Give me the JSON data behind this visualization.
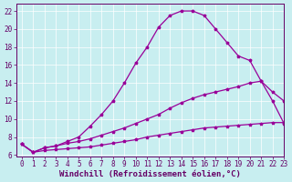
{
  "xlabel": "Windchill (Refroidissement éolien,°C)",
  "bg_color": "#c8eef0",
  "grid_color": "#ffffff",
  "line_color": "#990099",
  "xlim": [
    -0.5,
    23
  ],
  "ylim": [
    5.8,
    22.8
  ],
  "xticks": [
    0,
    1,
    2,
    3,
    4,
    5,
    6,
    7,
    8,
    9,
    10,
    11,
    12,
    13,
    14,
    15,
    16,
    17,
    18,
    19,
    20,
    21,
    22,
    23
  ],
  "yticks": [
    6,
    8,
    10,
    12,
    14,
    16,
    18,
    20,
    22
  ],
  "curve_main_x": [
    0,
    1,
    2,
    3,
    4,
    5,
    6,
    7,
    8,
    9,
    10,
    11,
    12,
    13,
    14,
    15,
    16,
    17,
    18,
    19,
    20,
    21,
    22,
    23
  ],
  "curve_main_y": [
    7.2,
    6.3,
    6.8,
    7.0,
    7.5,
    8.0,
    9.2,
    10.5,
    12.0,
    14.0,
    16.2,
    18.0,
    20.2,
    21.5,
    22.0,
    22.0,
    21.5,
    20.0,
    18.5,
    17.0,
    16.5,
    14.2,
    12.0,
    9.5
  ],
  "curve_mid_x": [
    0,
    1,
    2,
    3,
    4,
    5,
    6,
    7,
    8,
    9,
    10,
    11,
    12,
    13,
    14,
    15,
    16,
    17,
    18,
    19,
    20,
    21,
    22,
    23
  ],
  "curve_mid_y": [
    7.2,
    6.3,
    6.8,
    7.0,
    7.3,
    7.5,
    7.8,
    8.2,
    8.6,
    9.0,
    9.5,
    10.0,
    10.5,
    11.2,
    11.8,
    12.3,
    12.7,
    13.0,
    13.3,
    13.6,
    14.0,
    14.2,
    13.0,
    12.0
  ],
  "curve_low_x": [
    0,
    1,
    2,
    3,
    4,
    5,
    6,
    7,
    8,
    9,
    10,
    11,
    12,
    13,
    14,
    15,
    16,
    17,
    18,
    19,
    20,
    21,
    22,
    23
  ],
  "curve_low_y": [
    7.2,
    6.3,
    6.5,
    6.6,
    6.7,
    6.8,
    6.9,
    7.1,
    7.3,
    7.5,
    7.7,
    8.0,
    8.2,
    8.4,
    8.6,
    8.8,
    9.0,
    9.1,
    9.2,
    9.3,
    9.4,
    9.5,
    9.6,
    9.6
  ],
  "font_color": "#660066",
  "tick_fontsize": 5.5,
  "label_fontsize": 6.5
}
